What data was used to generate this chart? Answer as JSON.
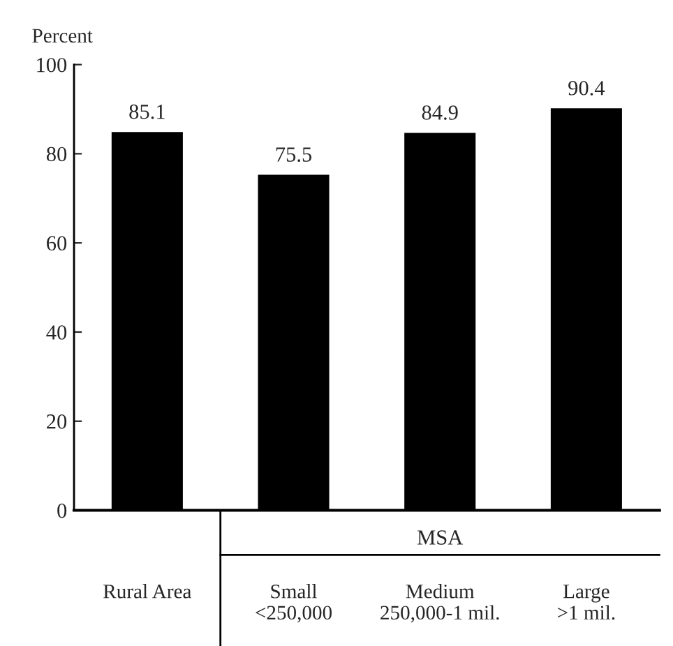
{
  "chart_data": {
    "type": "bar",
    "ylabel": "Percent",
    "categories": [
      "Rural Area",
      "Small\n<250,000",
      "Medium\n250,000-1 mil.",
      "Large\n>1 mil."
    ],
    "values": [
      85.1,
      75.5,
      84.9,
      90.4
    ],
    "color": "#000000",
    "ylim": [
      0,
      100
    ],
    "yticks": [
      0,
      20,
      40,
      60,
      80,
      100
    ],
    "grid": false,
    "data_labels": true,
    "annotations": [
      "MSA"
    ]
  }
}
